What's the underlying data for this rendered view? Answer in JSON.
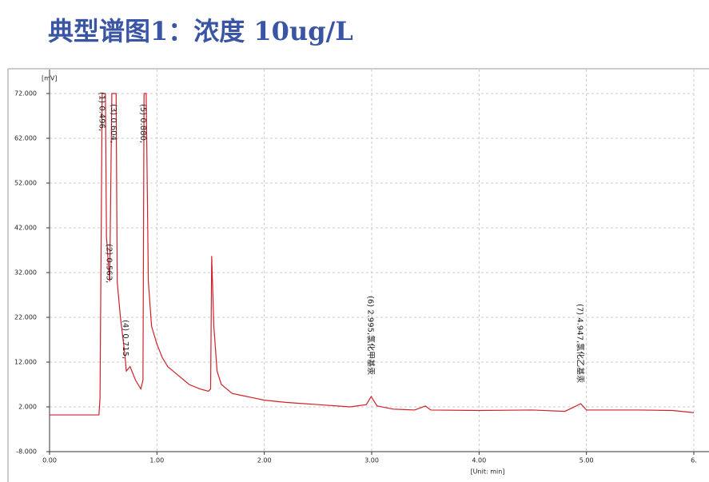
{
  "title": "典型谱图1：浓度 10ug/L",
  "chart_data": {
    "type": "line",
    "y_label": "[mV]",
    "x_label": "[Unit: min]",
    "x": [
      0,
      0.46,
      0.47,
      0.49,
      0.52,
      0.53,
      0.56,
      0.58,
      0.62,
      0.63,
      0.66,
      0.7,
      0.715,
      0.75,
      0.8,
      0.85,
      0.87,
      0.88,
      0.9,
      0.92,
      0.95,
      1.0,
      1.05,
      1.1,
      1.2,
      1.3,
      1.4,
      1.48,
      1.5,
      1.51,
      1.53,
      1.56,
      1.6,
      1.65,
      1.7,
      1.8,
      1.9,
      2.0,
      2.2,
      2.5,
      2.8,
      2.95,
      2.995,
      3.05,
      3.2,
      3.4,
      3.5,
      3.55,
      4.0,
      4.5,
      4.8,
      4.947,
      5.0,
      5.5,
      5.8,
      6.0
    ],
    "series": [
      {
        "color": "#d0202a",
        "values": [
          0.2,
          0.2,
          4,
          72,
          72,
          40,
          30,
          72,
          72,
          30,
          22,
          14,
          10,
          11,
          8,
          6,
          8,
          72,
          72,
          30,
          20,
          16,
          13,
          11,
          9,
          7,
          6,
          5.5,
          6,
          35.7,
          20,
          10,
          7,
          6,
          5,
          4.5,
          4,
          3.5,
          3,
          2.5,
          2,
          2.5,
          4.3,
          2.2,
          1.5,
          1.3,
          2.2,
          1.3,
          1.2,
          1.3,
          1,
          2.7,
          1.3,
          1.3,
          1.2,
          0.7
        ]
      }
    ],
    "xlim": [
      0,
      6
    ],
    "ylim": [
      -8,
      72
    ],
    "xticks": [
      {
        "value": 0,
        "label": "0.00"
      },
      {
        "value": 1,
        "label": "1.00"
      },
      {
        "value": 2,
        "label": "2.00"
      },
      {
        "value": 3,
        "label": "3.00"
      },
      {
        "value": 4,
        "label": "4.00"
      },
      {
        "value": 5,
        "label": "5.00"
      },
      {
        "value": 6,
        "label": "6."
      }
    ],
    "yticks": [
      {
        "value": -8,
        "label": "-8.000"
      },
      {
        "value": 2,
        "label": "2.000"
      },
      {
        "value": 12,
        "label": "12.000"
      },
      {
        "value": 22,
        "label": "22.000"
      },
      {
        "value": 32,
        "label": "32.000"
      },
      {
        "value": 42,
        "label": "42.000"
      },
      {
        "value": 52,
        "label": "52.000"
      },
      {
        "value": 62,
        "label": "62.000"
      },
      {
        "value": 72,
        "label": "72.000"
      }
    ],
    "grid": true,
    "annotations": [
      {
        "text": "(1) 0.496,",
        "x": 0.496
      },
      {
        "text": "(2) 0.563,",
        "x": 0.563
      },
      {
        "text": "(3) 0.604,",
        "x": 0.604
      },
      {
        "text": "(4) 0.715,",
        "x": 0.715
      },
      {
        "text": "(5) 0.880,",
        "x": 0.88
      },
      {
        "text": "(6) 2.995,氯化甲基汞",
        "x": 2.995
      },
      {
        "text": "(7) 4.947,氯化乙基汞",
        "x": 4.947
      }
    ]
  }
}
